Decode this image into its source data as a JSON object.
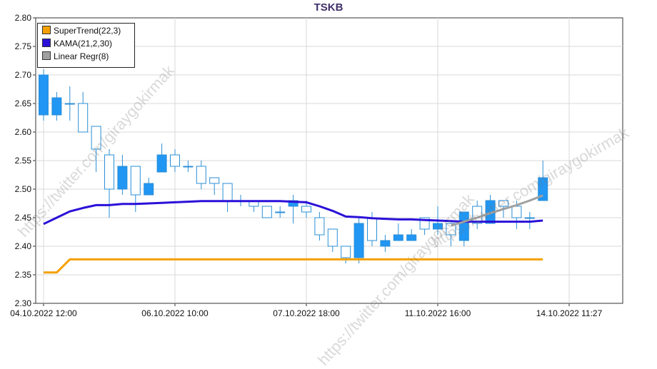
{
  "chart_data": {
    "type": "candlestick",
    "title": "TSKB",
    "ylim": [
      2.3,
      2.8
    ],
    "y_ticks": [
      "2.80",
      "2.75",
      "2.70",
      "2.65",
      "2.60",
      "2.55",
      "2.50",
      "2.45",
      "2.40",
      "2.35",
      "2.30"
    ],
    "x_tick_labels": [
      "04.10.2022 12:00",
      "06.10.2022 10:00",
      "07.10.2022 18:00",
      "11.10.2022 16:00",
      "14.10.2022 11:27"
    ],
    "x_tick_indices": [
      0,
      10,
      20,
      30,
      40
    ],
    "grid": true,
    "legend_position": "top-left",
    "candle_colors": {
      "up_body": "#ffffff",
      "down_body": "#2196f3",
      "outline": "#2b8fd6"
    },
    "candles": [
      {
        "o": 2.7,
        "h": 2.71,
        "l": 2.62,
        "c": 2.63
      },
      {
        "o": 2.66,
        "h": 2.67,
        "l": 2.62,
        "c": 2.63
      },
      {
        "o": 2.65,
        "h": 2.68,
        "l": 2.62,
        "c": 2.65
      },
      {
        "o": 2.6,
        "h": 2.67,
        "l": 2.6,
        "c": 2.65
      },
      {
        "o": 2.57,
        "h": 2.61,
        "l": 2.53,
        "c": 2.61
      },
      {
        "o": 2.5,
        "h": 2.57,
        "l": 2.45,
        "c": 2.56
      },
      {
        "o": 2.54,
        "h": 2.56,
        "l": 2.49,
        "c": 2.5
      },
      {
        "o": 2.49,
        "h": 2.54,
        "l": 2.46,
        "c": 2.54
      },
      {
        "o": 2.51,
        "h": 2.52,
        "l": 2.49,
        "c": 2.49
      },
      {
        "o": 2.56,
        "h": 2.58,
        "l": 2.53,
        "c": 2.53
      },
      {
        "o": 2.54,
        "h": 2.57,
        "l": 2.53,
        "c": 2.56
      },
      {
        "o": 2.54,
        "h": 2.55,
        "l": 2.53,
        "c": 2.54
      },
      {
        "o": 2.51,
        "h": 2.55,
        "l": 2.5,
        "c": 2.54
      },
      {
        "o": 2.51,
        "h": 2.52,
        "l": 2.49,
        "c": 2.52
      },
      {
        "o": 2.48,
        "h": 2.51,
        "l": 2.46,
        "c": 2.51
      },
      {
        "o": 2.48,
        "h": 2.49,
        "l": 2.47,
        "c": 2.48
      },
      {
        "o": 2.47,
        "h": 2.48,
        "l": 2.46,
        "c": 2.48
      },
      {
        "o": 2.45,
        "h": 2.47,
        "l": 2.45,
        "c": 2.47
      },
      {
        "o": 2.46,
        "h": 2.47,
        "l": 2.45,
        "c": 2.46
      },
      {
        "o": 2.48,
        "h": 2.49,
        "l": 2.44,
        "c": 2.47
      },
      {
        "o": 2.46,
        "h": 2.48,
        "l": 2.45,
        "c": 2.47
      },
      {
        "o": 2.42,
        "h": 2.46,
        "l": 2.41,
        "c": 2.45
      },
      {
        "o": 2.4,
        "h": 2.43,
        "l": 2.39,
        "c": 2.43
      },
      {
        "o": 2.38,
        "h": 2.4,
        "l": 2.37,
        "c": 2.4
      },
      {
        "o": 2.44,
        "h": 2.45,
        "l": 2.37,
        "c": 2.38
      },
      {
        "o": 2.41,
        "h": 2.46,
        "l": 2.4,
        "c": 2.45
      },
      {
        "o": 2.41,
        "h": 2.42,
        "l": 2.39,
        "c": 2.4
      },
      {
        "o": 2.42,
        "h": 2.44,
        "l": 2.41,
        "c": 2.41
      },
      {
        "o": 2.42,
        "h": 2.43,
        "l": 2.41,
        "c": 2.41
      },
      {
        "o": 2.43,
        "h": 2.45,
        "l": 2.42,
        "c": 2.45
      },
      {
        "o": 2.44,
        "h": 2.47,
        "l": 2.42,
        "c": 2.43
      },
      {
        "o": 2.42,
        "h": 2.44,
        "l": 2.4,
        "c": 2.44
      },
      {
        "o": 2.46,
        "h": 2.46,
        "l": 2.4,
        "c": 2.41
      },
      {
        "o": 2.44,
        "h": 2.48,
        "l": 2.43,
        "c": 2.47
      },
      {
        "o": 2.48,
        "h": 2.49,
        "l": 2.44,
        "c": 2.44
      },
      {
        "o": 2.47,
        "h": 2.48,
        "l": 2.45,
        "c": 2.48
      },
      {
        "o": 2.45,
        "h": 2.48,
        "l": 2.43,
        "c": 2.47
      },
      {
        "o": 2.45,
        "h": 2.46,
        "l": 2.43,
        "c": 2.45
      },
      {
        "o": 2.52,
        "h": 2.55,
        "l": 2.48,
        "c": 2.48
      }
    ],
    "series": [
      {
        "name": "SuperTrend(22,3)",
        "color": "#f5a000",
        "values": [
          2.354,
          2.354,
          2.377,
          2.377,
          2.377,
          2.377,
          2.377,
          2.377,
          2.377,
          2.377,
          2.377,
          2.377,
          2.377,
          2.377,
          2.377,
          2.377,
          2.377,
          2.377,
          2.377,
          2.377,
          2.377,
          2.377,
          2.377,
          2.377,
          2.377,
          2.377,
          2.377,
          2.377,
          2.377,
          2.377,
          2.377,
          2.377,
          2.377,
          2.377,
          2.377,
          2.377,
          2.377,
          2.377,
          2.377
        ]
      },
      {
        "name": "KAMA(21,2,30)",
        "color": "#2a10d8",
        "values": [
          2.439,
          2.45,
          2.461,
          2.467,
          2.472,
          2.472,
          2.474,
          2.474,
          2.475,
          2.476,
          2.477,
          2.478,
          2.479,
          2.479,
          2.479,
          2.479,
          2.479,
          2.479,
          2.479,
          2.478,
          2.477,
          2.47,
          2.462,
          2.452,
          2.451,
          2.449,
          2.448,
          2.447,
          2.447,
          2.446,
          2.445,
          2.444,
          2.443,
          2.443,
          2.443,
          2.443,
          2.443,
          2.443,
          2.445
        ]
      },
      {
        "name": "Linear Regr(8)",
        "color": "#a0a0a0",
        "start_index": 31,
        "values": [
          2.436,
          2.443,
          2.45,
          2.458,
          2.465,
          2.472,
          2.48,
          2.489
        ]
      }
    ]
  },
  "watermark_text": "https://twitter.com/giraygokirmak"
}
